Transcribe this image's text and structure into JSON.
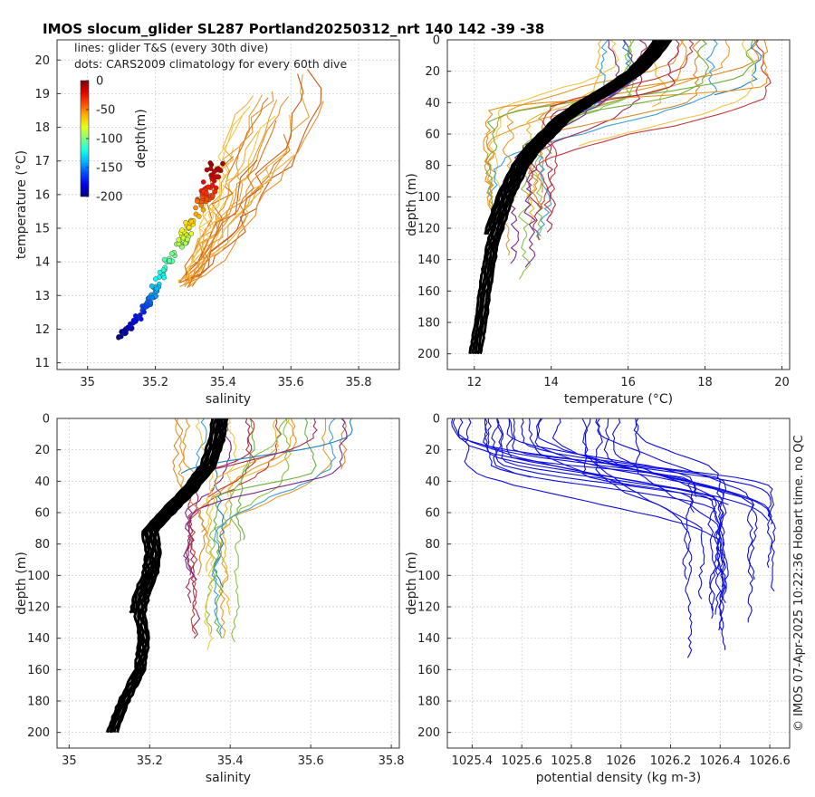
{
  "title": "IMOS slocum_glider SL287 Portland20250312_nrt 140  142  -39  -38",
  "credit": "© IMOS 07-Apr-2025 10:22:36 Hobart time. no QC",
  "colors": {
    "glider_warm": [
      "#f7c94a",
      "#f3b13c",
      "#e9912c",
      "#d9761e",
      "#c85a1b",
      "#e2a236"
    ],
    "profile": [
      "#e79a2a",
      "#f2c74a",
      "#f2b22e",
      "#e7921f",
      "#8ac04a",
      "#6cb03a",
      "#3aa0d8",
      "#1f7fc2",
      "#7a2a8a",
      "#a02a55",
      "#c23b3b",
      "#d98a2a"
    ],
    "climatology": "#000000",
    "density": "#1010e0"
  },
  "chart_data": [
    {
      "type": "scatter",
      "panel": "ts",
      "xlabel": "salinity",
      "ylabel": "temperature (°C)",
      "xlim": [
        34.91,
        35.92
      ],
      "ylim": [
        10.8,
        20.6
      ],
      "xticks": [
        35,
        35.2,
        35.4,
        35.6,
        35.8
      ],
      "yticks": [
        11,
        12,
        13,
        14,
        15,
        16,
        17,
        18,
        19,
        20
      ],
      "legend": [
        "lines: glider T&S (every 30th dive)",
        "dots: CARS2009 climatology for every 60th dive"
      ],
      "colorbar": {
        "label": "depth(m)",
        "ticks": [
          0,
          -50,
          -100,
          -150,
          -200
        ],
        "range": [
          -200,
          0
        ],
        "placement": "top-left"
      },
      "glider_band": {
        "lower": [
          [
            35.29,
            13.3
          ],
          [
            35.38,
            14.0
          ],
          [
            35.47,
            15.0
          ],
          [
            35.55,
            16.0
          ],
          [
            35.64,
            17.0
          ],
          [
            35.7,
            18.4
          ],
          [
            35.68,
            19.8
          ]
        ],
        "upper": [
          [
            35.29,
            13.4
          ],
          [
            35.33,
            14.5
          ],
          [
            35.36,
            15.5
          ],
          [
            35.38,
            16.4
          ],
          [
            35.41,
            17.3
          ],
          [
            35.46,
            18.6
          ],
          [
            35.52,
            19.0
          ]
        ]
      },
      "climatology_ts": [
        [
          35.09,
          11.8
        ],
        [
          35.13,
          12.1
        ],
        [
          35.17,
          12.6
        ],
        [
          35.19,
          13.0
        ],
        [
          35.21,
          13.5
        ],
        [
          35.24,
          14.0
        ],
        [
          35.28,
          14.6
        ],
        [
          35.3,
          15.0
        ],
        [
          35.33,
          15.6
        ],
        [
          35.35,
          16.0
        ],
        [
          35.37,
          16.5
        ],
        [
          35.38,
          17.1
        ]
      ]
    },
    {
      "type": "line",
      "panel": "temperature_profile",
      "xlabel": "temperature (°C)",
      "ylabel": "depth (m)",
      "xlim": [
        11.3,
        20.2
      ],
      "ylim": [
        0,
        210
      ],
      "xticks": [
        12,
        14,
        16,
        18,
        20
      ],
      "yticks": [
        0,
        20,
        40,
        60,
        80,
        100,
        120,
        140,
        160,
        180,
        200
      ],
      "climatology": [
        [
          16.9,
          0
        ],
        [
          16.6,
          10
        ],
        [
          16.2,
          20
        ],
        [
          15.6,
          30
        ],
        [
          14.9,
          40
        ],
        [
          14.3,
          50
        ],
        [
          13.9,
          60
        ],
        [
          13.5,
          70
        ],
        [
          13.2,
          80
        ],
        [
          13.0,
          90
        ],
        [
          12.8,
          100
        ],
        [
          12.6,
          115
        ],
        [
          12.4,
          130
        ],
        [
          12.3,
          145
        ],
        [
          12.2,
          160
        ],
        [
          12.1,
          180
        ],
        [
          11.95,
          200
        ]
      ],
      "glider_range": {
        "surface": [
          15.3,
          19.6
        ],
        "deep_end": [
          12.3,
          14.2
        ],
        "max_depth": 155
      }
    },
    {
      "type": "line",
      "panel": "salinity_profile",
      "xlabel": "salinity",
      "ylabel": "depth (m)",
      "xlim": [
        34.97,
        35.82
      ],
      "ylim": [
        0,
        210
      ],
      "xticks": [
        35,
        35.2,
        35.4,
        35.6,
        35.8
      ],
      "yticks": [
        0,
        20,
        40,
        60,
        80,
        100,
        120,
        140,
        160,
        180,
        200
      ],
      "climatology": [
        [
          35.375,
          0
        ],
        [
          35.365,
          15
        ],
        [
          35.345,
          30
        ],
        [
          35.3,
          45
        ],
        [
          35.25,
          58
        ],
        [
          35.2,
          72
        ],
        [
          35.21,
          85
        ],
        [
          35.2,
          100
        ],
        [
          35.18,
          112
        ],
        [
          35.17,
          125
        ],
        [
          35.18,
          140
        ],
        [
          35.17,
          160
        ],
        [
          35.13,
          180
        ],
        [
          35.1,
          200
        ]
      ],
      "glider_range": {
        "surface": [
          35.25,
          35.7
        ],
        "deep_end": [
          35.28,
          35.42
        ],
        "max_depth": 155
      }
    },
    {
      "type": "line",
      "panel": "density_profile",
      "xlabel": "potential density (kg m-3)",
      "ylabel": "depth (m)",
      "xlim": [
        1025.3,
        1026.68
      ],
      "ylim": [
        0,
        210
      ],
      "xticks": [
        1025.4,
        1025.6,
        1025.8,
        1026,
        1026.2,
        1026.4,
        1026.6
      ],
      "xticklabels": [
        "1025.4",
        "1025.6",
        "1025.8",
        "1026",
        "1026.2",
        "1026.4",
        "1026.6"
      ],
      "yticks": [
        0,
        20,
        40,
        60,
        80,
        100,
        120,
        140,
        160,
        180,
        200
      ],
      "glider_range": {
        "surface": [
          1025.32,
          1026.1
        ],
        "deep_end": [
          1026.22,
          1026.62
        ],
        "max_depth": 155
      }
    }
  ]
}
